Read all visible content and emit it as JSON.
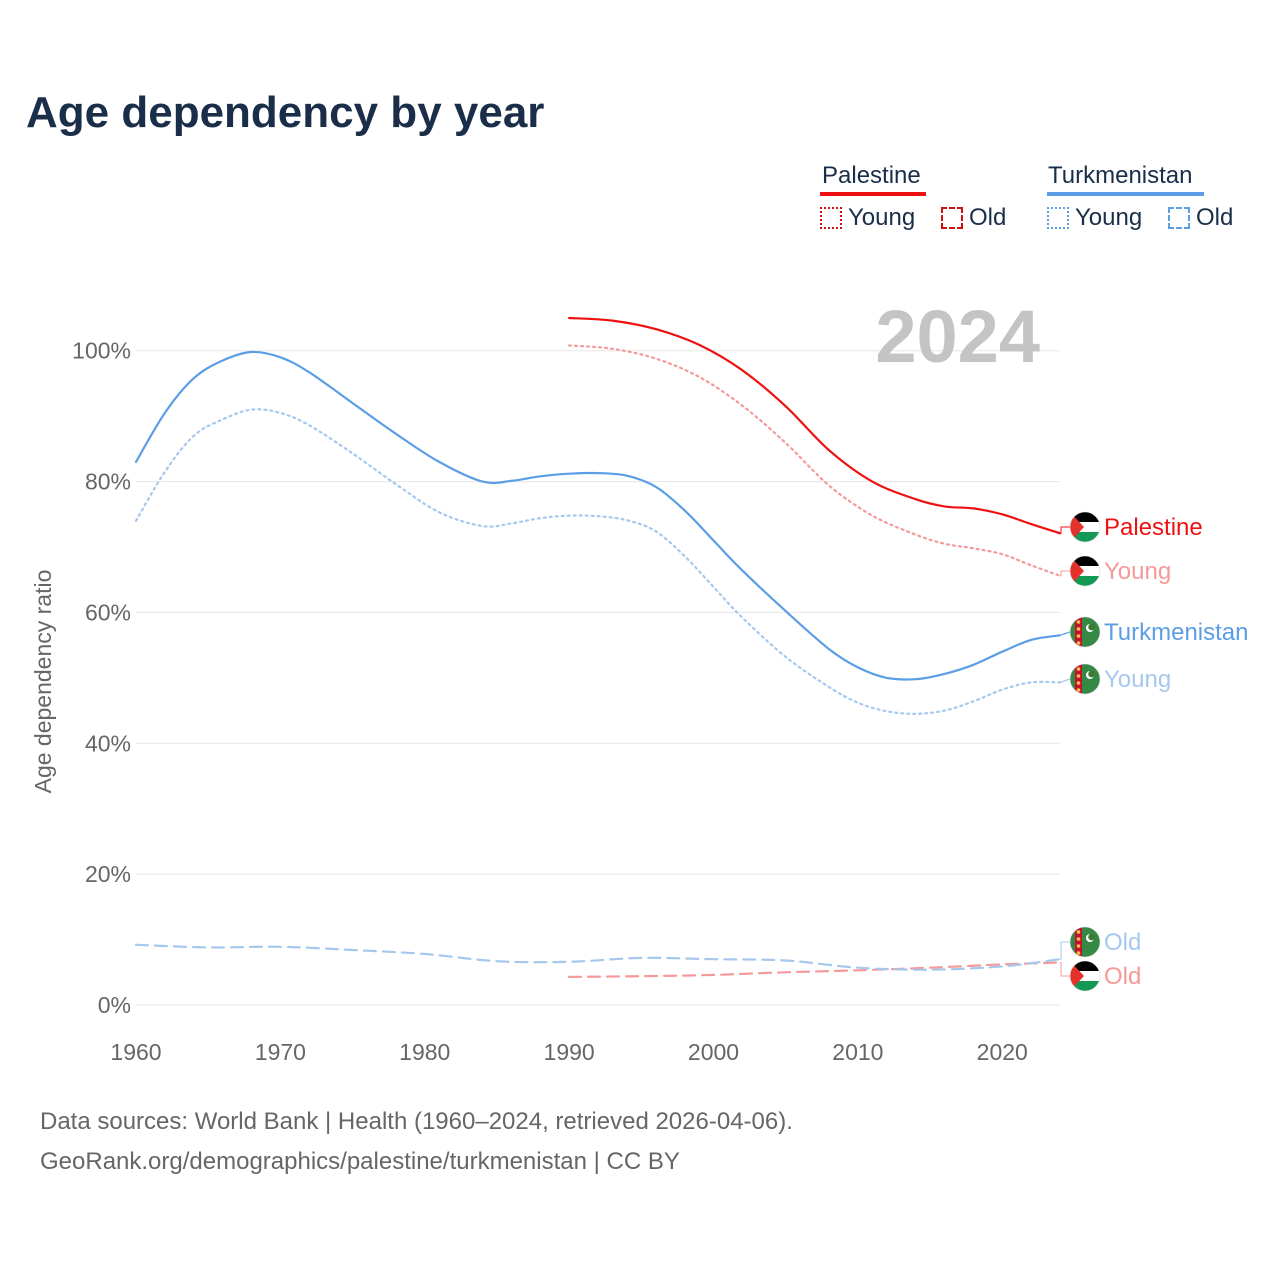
{
  "title": "Age dependency by year",
  "legend": {
    "countries": [
      {
        "name": "Palestine",
        "color": "#ee1111",
        "young_label": "Young",
        "old_label": "Old"
      },
      {
        "name": "Turkmenistan",
        "color": "#5b9ee6",
        "young_label": "Young",
        "old_label": "Old"
      }
    ]
  },
  "year_label": "2024",
  "source_line1": "Data sources: World Bank | Health (1960–2024, retrieved 2026-04-06).",
  "source_line2": "GeoRank.org/demographics/palestine/turkmenistan | CC BY",
  "colors": {
    "palestine": "#ee1111",
    "palestine_light": "#f59a9a",
    "turkmenistan": "#5b9ee6",
    "turkmenistan_light": "#a6c8ef",
    "grid": "#e6e6e6",
    "axis_text": "#666666",
    "year_watermark": "#c4c4c4"
  },
  "chart_data": {
    "type": "line",
    "title": "Age dependency by year",
    "xlabel": "",
    "ylabel": "Age dependency ratio",
    "xlim": [
      1960,
      2024
    ],
    "ylim": [
      0,
      105
    ],
    "x_ticks": [
      1960,
      1970,
      1980,
      1990,
      2000,
      2010,
      2020
    ],
    "y_ticks": [
      {
        "value": 0,
        "label": "0%"
      },
      {
        "value": 20,
        "label": "20%"
      },
      {
        "value": 40,
        "label": "40%"
      },
      {
        "value": 60,
        "label": "60%"
      },
      {
        "value": 80,
        "label": "80%"
      },
      {
        "value": 100,
        "label": "100%"
      }
    ],
    "grid": true,
    "series": [
      {
        "key": "pse_total",
        "name": "Palestine",
        "end_label": "Palestine",
        "flag": "palestine",
        "color": "#ee1111",
        "dash": "solid",
        "points": [
          [
            1990,
            105
          ],
          [
            1993,
            104.6
          ],
          [
            1996,
            103.3
          ],
          [
            1999,
            100.9
          ],
          [
            2002,
            97.0
          ],
          [
            2005,
            91.5
          ],
          [
            2008,
            84.8
          ],
          [
            2011,
            80.0
          ],
          [
            2014,
            77.3
          ],
          [
            2016,
            76.2
          ],
          [
            2018,
            75.9
          ],
          [
            2020,
            75.0
          ],
          [
            2022,
            73.5
          ],
          [
            2024,
            72.1
          ]
        ]
      },
      {
        "key": "pse_young",
        "name": "Palestine Young",
        "end_label": "Young",
        "flag": "palestine",
        "color": "#f59a9a",
        "dash": "dotted",
        "points": [
          [
            1990,
            100.8
          ],
          [
            1993,
            100.3
          ],
          [
            1996,
            98.8
          ],
          [
            1999,
            96.0
          ],
          [
            2002,
            91.6
          ],
          [
            2005,
            85.9
          ],
          [
            2008,
            79.4
          ],
          [
            2011,
            74.8
          ],
          [
            2014,
            71.9
          ],
          [
            2016,
            70.5
          ],
          [
            2018,
            69.8
          ],
          [
            2020,
            68.9
          ],
          [
            2022,
            67.2
          ],
          [
            2024,
            65.6
          ]
        ]
      },
      {
        "key": "pse_old",
        "name": "Palestine Old",
        "end_label": "Old",
        "flag": "palestine",
        "color": "#f59a9a",
        "dash": "dashed",
        "points": [
          [
            1990,
            4.3
          ],
          [
            1995,
            4.4
          ],
          [
            2000,
            4.6
          ],
          [
            2005,
            5.0
          ],
          [
            2010,
            5.3
          ],
          [
            2015,
            5.7
          ],
          [
            2020,
            6.2
          ],
          [
            2024,
            6.5
          ]
        ]
      },
      {
        "key": "tkm_total",
        "name": "Turkmenistan",
        "end_label": "Turkmenistan",
        "flag": "turkmenistan",
        "color": "#5b9ee6",
        "dash": "solid",
        "points": [
          [
            1960,
            83.0
          ],
          [
            1962,
            90.5
          ],
          [
            1964,
            95.8
          ],
          [
            1966,
            98.5
          ],
          [
            1968,
            99.8
          ],
          [
            1970,
            99.0
          ],
          [
            1972,
            96.7
          ],
          [
            1975,
            92.0
          ],
          [
            1978,
            87.3
          ],
          [
            1981,
            83.0
          ],
          [
            1984,
            80.0
          ],
          [
            1986,
            80.1
          ],
          [
            1988,
            80.8
          ],
          [
            1990,
            81.2
          ],
          [
            1992,
            81.3
          ],
          [
            1994,
            80.9
          ],
          [
            1996,
            79.2
          ],
          [
            1998,
            75.6
          ],
          [
            2000,
            71.0
          ],
          [
            2002,
            66.4
          ],
          [
            2005,
            60.2
          ],
          [
            2008,
            54.4
          ],
          [
            2010,
            51.6
          ],
          [
            2012,
            50.0
          ],
          [
            2014,
            49.8
          ],
          [
            2016,
            50.6
          ],
          [
            2018,
            52.0
          ],
          [
            2020,
            54.0
          ],
          [
            2022,
            55.8
          ],
          [
            2024,
            56.5
          ]
        ]
      },
      {
        "key": "tkm_young",
        "name": "Turkmenistan Young",
        "end_label": "Young",
        "flag": "turkmenistan",
        "color": "#a6c8ef",
        "dash": "dotted",
        "points": [
          [
            1960,
            74.0
          ],
          [
            1962,
            81.5
          ],
          [
            1964,
            87.0
          ],
          [
            1966,
            89.5
          ],
          [
            1968,
            91.0
          ],
          [
            1970,
            90.5
          ],
          [
            1972,
            88.6
          ],
          [
            1975,
            84.3
          ],
          [
            1978,
            79.6
          ],
          [
            1981,
            75.3
          ],
          [
            1984,
            73.2
          ],
          [
            1986,
            73.6
          ],
          [
            1988,
            74.4
          ],
          [
            1990,
            74.8
          ],
          [
            1992,
            74.7
          ],
          [
            1994,
            74.1
          ],
          [
            1996,
            72.4
          ],
          [
            1998,
            68.6
          ],
          [
            2000,
            63.9
          ],
          [
            2002,
            59.2
          ],
          [
            2005,
            53.2
          ],
          [
            2008,
            48.6
          ],
          [
            2010,
            46.2
          ],
          [
            2012,
            44.9
          ],
          [
            2014,
            44.5
          ],
          [
            2016,
            45.0
          ],
          [
            2018,
            46.4
          ],
          [
            2020,
            48.2
          ],
          [
            2022,
            49.3
          ],
          [
            2024,
            49.3
          ]
        ]
      },
      {
        "key": "tkm_old",
        "name": "Turkmenistan Old",
        "end_label": "Old",
        "flag": "turkmenistan",
        "color": "#a6c8ef",
        "dash": "dashed",
        "points": [
          [
            1960,
            9.2
          ],
          [
            1965,
            8.8
          ],
          [
            1970,
            8.9
          ],
          [
            1975,
            8.4
          ],
          [
            1980,
            7.8
          ],
          [
            1985,
            6.7
          ],
          [
            1990,
            6.6
          ],
          [
            1995,
            7.2
          ],
          [
            2000,
            7.0
          ],
          [
            2005,
            6.8
          ],
          [
            2010,
            5.7
          ],
          [
            2015,
            5.4
          ],
          [
            2020,
            5.9
          ],
          [
            2024,
            7.0
          ]
        ]
      }
    ]
  }
}
